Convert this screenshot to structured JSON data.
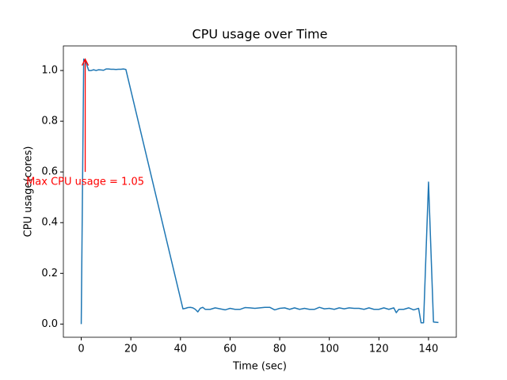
{
  "chart_data": {
    "type": "line",
    "title": "CPU usage over Time",
    "xlabel": "Time (sec)",
    "ylabel": "CPU usage(cores)",
    "x": [
      0,
      1,
      2,
      3,
      4,
      5,
      6,
      7,
      8,
      9,
      10,
      11,
      12,
      13,
      14,
      15,
      16,
      17,
      18,
      41,
      42,
      43,
      44,
      45,
      46,
      47,
      48,
      49,
      50,
      52,
      54,
      56,
      58,
      60,
      62,
      64,
      66,
      68,
      70,
      72,
      74,
      76,
      78,
      80,
      82,
      84,
      86,
      88,
      90,
      92,
      94,
      96,
      98,
      100,
      102,
      104,
      106,
      108,
      110,
      112,
      114,
      116,
      118,
      120,
      122,
      124,
      126,
      127,
      128,
      130,
      132,
      134,
      136,
      137,
      138,
      140,
      142,
      144
    ],
    "series": [
      {
        "name": "CPU usage",
        "color": "#1f77b4",
        "values": [
          0,
          1.045,
          1.03,
          1.0,
          1.0,
          1.003,
          1.0,
          1.003,
          1.002,
          1.001,
          1.006,
          1.006,
          1.005,
          1.005,
          1.004,
          1.005,
          1.005,
          1.006,
          1.004,
          0.06,
          0.062,
          0.065,
          0.066,
          0.064,
          0.058,
          0.048,
          0.062,
          0.066,
          0.058,
          0.058,
          0.064,
          0.06,
          0.056,
          0.062,
          0.058,
          0.058,
          0.065,
          0.064,
          0.062,
          0.064,
          0.066,
          0.066,
          0.056,
          0.062,
          0.064,
          0.058,
          0.064,
          0.058,
          0.062,
          0.058,
          0.058,
          0.066,
          0.06,
          0.062,
          0.058,
          0.064,
          0.06,
          0.064,
          0.062,
          0.062,
          0.058,
          0.064,
          0.058,
          0.058,
          0.064,
          0.058,
          0.064,
          0.045,
          0.058,
          0.058,
          0.064,
          0.056,
          0.062,
          0.005,
          0.005,
          0.56,
          0.008,
          0.006
        ]
      }
    ],
    "xlim": [
      -7.2,
      151.2
    ],
    "ylim": [
      -0.052,
      1.097
    ],
    "xticks": [
      0,
      20,
      40,
      60,
      80,
      100,
      120,
      140
    ],
    "yticks": [
      {
        "value": 0,
        "label": "0.0"
      },
      {
        "value": 0.2,
        "label": "0.2"
      },
      {
        "value": 0.4,
        "label": "0.4"
      },
      {
        "value": 0.6,
        "label": "0.6"
      },
      {
        "value": 0.8,
        "label": "0.8"
      },
      {
        "value": 1,
        "label": "1.0"
      }
    ],
    "annotation": {
      "text": "Max CPU usage = 1.05",
      "color": "red",
      "xy": [
        1.6,
        1.045
      ],
      "xytext": [
        1.6,
        0.6
      ]
    }
  }
}
